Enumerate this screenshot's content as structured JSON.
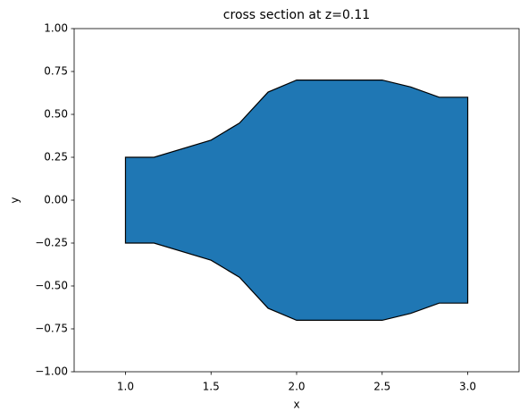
{
  "chart_data": {
    "type": "polygon",
    "title": "cross section at z=0.11",
    "x_label": "x",
    "y_label": "y",
    "x": [
      1.0,
      1.1667,
      1.5,
      1.6667,
      1.8333,
      2.0,
      2.5,
      2.6667,
      2.8333,
      3.0,
      3.0,
      2.8333,
      2.6667,
      2.5,
      2.0,
      1.8333,
      1.6667,
      1.5,
      1.1667,
      1.0
    ],
    "y": [
      0.25,
      0.25,
      0.35,
      0.45,
      0.63,
      0.7,
      0.7,
      0.66,
      0.6,
      0.6,
      -0.6,
      -0.6,
      -0.66,
      -0.7,
      -0.7,
      -0.63,
      -0.45,
      -0.35,
      -0.25,
      -0.25
    ],
    "color": "#1f77b4",
    "edge_color": "#000000",
    "xlim": [
      0.7,
      3.3
    ],
    "ylim": [
      -1.0,
      1.0
    ],
    "xticks": [
      {
        "value": 1.0,
        "label": "1.0"
      },
      1.5,
      {
        "value": 2.0,
        "label": "2.0"
      },
      2.5,
      {
        "value": 3.0,
        "label": "3.0"
      }
    ],
    "yticks": [
      {
        "value": -1.0,
        "label": "−1.00"
      },
      {
        "value": -0.75,
        "label": "−0.75"
      },
      {
        "value": -0.5,
        "label": "−0.50"
      },
      {
        "value": -0.25,
        "label": "−0.25"
      },
      {
        "value": 0.0,
        "label": "0.00"
      },
      {
        "value": 0.25,
        "label": "0.25"
      },
      {
        "value": 0.5,
        "label": "0.50"
      },
      {
        "value": 0.75,
        "label": "0.75"
      },
      {
        "value": 1.0,
        "label": "1.00"
      }
    ]
  }
}
